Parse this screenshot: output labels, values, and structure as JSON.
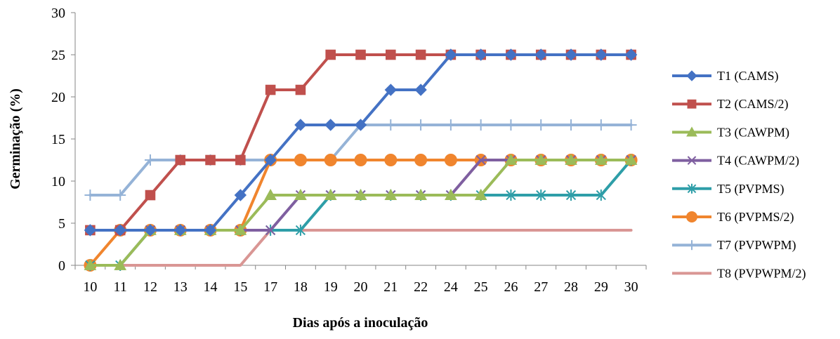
{
  "chart_data": {
    "type": "line",
    "title": "",
    "xlabel": "Dias após a inoculação",
    "ylabel": "Germinação (%)",
    "ylim": [
      0,
      30
    ],
    "yticks": [
      0,
      5,
      10,
      15,
      20,
      25,
      30
    ],
    "grid": false,
    "legend_position": "right",
    "categories": [
      "10",
      "11",
      "12",
      "13",
      "14",
      "15",
      "17",
      "18",
      "19",
      "20",
      "21",
      "22",
      "24",
      "25",
      "26",
      "27",
      "28",
      "29",
      "30"
    ],
    "series": [
      {
        "name": "T1 (CAMS)",
        "color": "#4472C4",
        "marker": "diamond",
        "values": [
          4.17,
          4.17,
          4.17,
          4.17,
          4.17,
          8.33,
          12.5,
          16.67,
          16.67,
          16.67,
          20.83,
          20.83,
          25,
          25,
          25,
          25,
          25,
          25,
          25
        ]
      },
      {
        "name": "T2 (CAMS/2)",
        "color": "#C0504D",
        "marker": "square",
        "values": [
          4.17,
          4.17,
          8.33,
          12.5,
          12.5,
          12.5,
          20.83,
          20.83,
          25,
          25,
          25,
          25,
          25,
          25,
          25,
          25,
          25,
          25,
          25
        ]
      },
      {
        "name": "T3 (CAWPM)",
        "color": "#9BBB59",
        "marker": "triangle",
        "values": [
          0,
          0,
          4.17,
          4.17,
          4.17,
          4.17,
          8.33,
          8.33,
          8.33,
          8.33,
          8.33,
          8.33,
          8.33,
          8.33,
          12.5,
          12.5,
          12.5,
          12.5,
          12.5
        ]
      },
      {
        "name": "T4 (CAWPM/2)",
        "color": "#7F5FA0",
        "marker": "x",
        "values": [
          4.17,
          4.17,
          4.17,
          4.17,
          4.17,
          4.17,
          4.17,
          8.33,
          8.33,
          8.33,
          8.33,
          8.33,
          8.33,
          12.5,
          12.5,
          12.5,
          12.5,
          12.5,
          12.5
        ]
      },
      {
        "name": "T5 (PVPMS)",
        "color": "#2E9EA8",
        "marker": "star",
        "values": [
          0,
          0,
          4.17,
          4.17,
          4.17,
          4.17,
          4.17,
          4.17,
          8.33,
          8.33,
          8.33,
          8.33,
          8.33,
          8.33,
          8.33,
          8.33,
          8.33,
          8.33,
          12.5
        ]
      },
      {
        "name": "T6 (PVPMS/2)",
        "color": "#F0852E",
        "marker": "circle",
        "values": [
          0,
          4.17,
          4.17,
          4.17,
          4.17,
          4.17,
          12.5,
          12.5,
          12.5,
          12.5,
          12.5,
          12.5,
          12.5,
          12.5,
          12.5,
          12.5,
          12.5,
          12.5,
          12.5
        ]
      },
      {
        "name": "T7 (PVPWPM)",
        "color": "#95B3D7",
        "marker": "plus",
        "values": [
          8.33,
          8.33,
          12.5,
          12.5,
          12.5,
          12.5,
          12.5,
          12.5,
          12.5,
          16.67,
          16.67,
          16.67,
          16.67,
          16.67,
          16.67,
          16.67,
          16.67,
          16.67,
          16.67
        ]
      },
      {
        "name": "T8 (PVPWPM/2)",
        "color": "#D99694",
        "marker": "none",
        "values": [
          0,
          0,
          0,
          0,
          0,
          0,
          4.17,
          4.17,
          4.17,
          4.17,
          4.17,
          4.17,
          4.17,
          4.17,
          4.17,
          4.17,
          4.17,
          4.17,
          4.17
        ]
      }
    ]
  }
}
